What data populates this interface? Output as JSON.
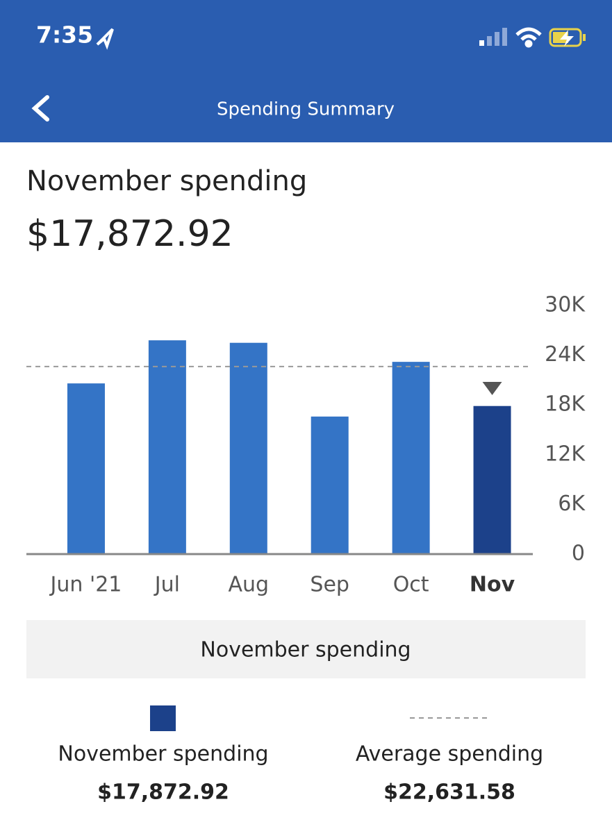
{
  "status_bar": {
    "time": "7:35"
  },
  "header": {
    "title": "Spending Summary"
  },
  "summary": {
    "title": "November spending",
    "amount": "$17,872.92"
  },
  "chart_data": {
    "type": "bar",
    "categories": [
      "Jun '21",
      "Jul",
      "Aug",
      "Sep",
      "Oct",
      "Nov"
    ],
    "values": [
      20600,
      25800,
      25500,
      16600,
      23200,
      17872.92
    ],
    "colors": [
      "#3474c6",
      "#3474c6",
      "#3474c6",
      "#3474c6",
      "#3474c6",
      "#1c418a"
    ],
    "ylim": [
      0,
      30000
    ],
    "yticks": [
      {
        "value": 0,
        "label": "0"
      },
      {
        "value": 6000,
        "label": "6K"
      },
      {
        "value": 12000,
        "label": "12K"
      },
      {
        "value": 18000,
        "label": "18K"
      },
      {
        "value": 24000,
        "label": "24K"
      },
      {
        "value": 30000,
        "label": "30K"
      }
    ],
    "legend_title": "November spending",
    "selected": {
      "name": "November spending",
      "value_label": "$17,872.92",
      "color": "#1c418a"
    },
    "average": {
      "name": "Average spending",
      "value": 22631.58,
      "value_label": "$22,631.58",
      "color": "#999999"
    }
  }
}
